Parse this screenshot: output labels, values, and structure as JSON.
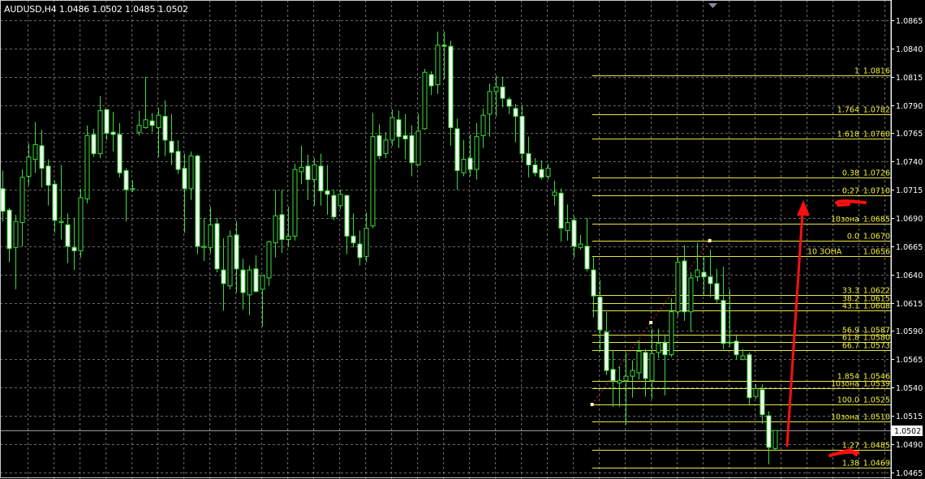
{
  "header": {
    "symbol_title": "AUDUSD,H4 1.0486 1.0502 1.0485 1.0502"
  },
  "colors": {
    "background": "#000000",
    "candle_outline": "#3cdc3c",
    "bear_fill": "#f4fff4",
    "bull_fill": "#000000",
    "grid": "#8a8a8a",
    "fib_line": "#e6e64a",
    "fib_text": "#f2f23a",
    "trendline": "#d03030",
    "annotation": "#ff1010",
    "current_price_line": "#9a9a9a"
  },
  "chart_data": {
    "type": "candlestick",
    "symbol": "AUDUSD",
    "timeframe": "H4",
    "ylim": [
      1.0459,
      1.0883
    ],
    "grid": true,
    "y_ticks": [
      "1.0865",
      "1.0840",
      "1.0815",
      "1.0790",
      "1.0765",
      "1.0740",
      "1.0715",
      "1.0690",
      "1.0665",
      "1.0640",
      "1.0615",
      "1.0590",
      "1.0565",
      "1.0540",
      "1.0515",
      "1.0490",
      "1.0465"
    ],
    "ohlc_fields": [
      "open",
      "high",
      "low",
      "close"
    ],
    "candles": [
      [
        1.0716,
        1.0732,
        1.0687,
        1.0696
      ],
      [
        1.0697,
        1.0699,
        1.0651,
        1.0663
      ],
      [
        1.0664,
        1.0693,
        1.0627,
        1.0687
      ],
      [
        1.0686,
        1.0733,
        1.0665,
        1.0726
      ],
      [
        1.0727,
        1.0756,
        1.0719,
        1.0744
      ],
      [
        1.0742,
        1.0775,
        1.073,
        1.0755
      ],
      [
        1.0754,
        1.0768,
        1.0717,
        1.0734
      ],
      [
        1.0736,
        1.0742,
        1.0701,
        1.0719
      ],
      [
        1.072,
        1.0723,
        1.0677,
        1.0688
      ],
      [
        1.0686,
        1.0737,
        1.0671,
        1.0687
      ],
      [
        1.0684,
        1.0694,
        1.065,
        1.0665
      ],
      [
        1.0664,
        1.069,
        1.0644,
        1.0661
      ],
      [
        1.0661,
        1.0716,
        1.0655,
        1.0708
      ],
      [
        1.0707,
        1.0772,
        1.0703,
        1.0763
      ],
      [
        1.0764,
        1.0769,
        1.0744,
        1.0747
      ],
      [
        1.0747,
        1.0798,
        1.0743,
        1.0785
      ],
      [
        1.0786,
        1.0786,
        1.0759,
        1.0765
      ],
      [
        1.0766,
        1.0784,
        1.0749,
        1.0764
      ],
      [
        1.0764,
        1.0774,
        1.0726,
        1.073
      ],
      [
        1.0732,
        1.0734,
        1.0687,
        1.0715
      ],
      [
        1.0715,
        1.0723,
        1.0713,
        1.0716
      ],
      [
        1.0766,
        1.0785,
        1.0763,
        1.0772
      ],
      [
        1.077,
        1.0815,
        1.0769,
        1.0777
      ],
      [
        1.0776,
        1.0783,
        1.0766,
        1.0772
      ],
      [
        1.077,
        1.0787,
        1.0744,
        1.0781
      ],
      [
        1.078,
        1.0794,
        1.0745,
        1.0759
      ],
      [
        1.0758,
        1.0782,
        1.0737,
        1.0748
      ],
      [
        1.0749,
        1.0759,
        1.0729,
        1.0733
      ],
      [
        1.0734,
        1.0747,
        1.0677,
        1.0716
      ],
      [
        1.0716,
        1.0749,
        1.0706,
        1.0745
      ],
      [
        1.0745,
        1.0746,
        1.0658,
        1.0665
      ],
      [
        1.0664,
        1.069,
        1.0652,
        1.0665
      ],
      [
        1.0664,
        1.07,
        1.0659,
        1.0684
      ],
      [
        1.0685,
        1.069,
        1.0642,
        1.0645
      ],
      [
        1.0644,
        1.0672,
        1.0608,
        1.0632
      ],
      [
        1.063,
        1.0679,
        1.0627,
        1.0674
      ],
      [
        1.0675,
        1.0687,
        1.0624,
        1.0645
      ],
      [
        1.0644,
        1.0654,
        1.0609,
        1.0624
      ],
      [
        1.0622,
        1.0648,
        1.0604,
        1.0644
      ],
      [
        1.0645,
        1.0657,
        1.0624,
        1.0625
      ],
      [
        1.0627,
        1.0639,
        1.0594,
        1.0639
      ],
      [
        1.0637,
        1.067,
        1.063,
        1.0669
      ],
      [
        1.0668,
        1.0715,
        1.0655,
        1.0692
      ],
      [
        1.0693,
        1.0715,
        1.0659,
        1.0671
      ],
      [
        1.0671,
        1.07,
        1.0665,
        1.0674
      ],
      [
        1.0674,
        1.0738,
        1.067,
        1.0733
      ],
      [
        1.0731,
        1.0754,
        1.072,
        1.0735
      ],
      [
        1.0736,
        1.0746,
        1.0706,
        1.0724
      ],
      [
        1.0724,
        1.0743,
        1.0701,
        1.0737
      ],
      [
        1.0736,
        1.0747,
        1.0701,
        1.0714
      ],
      [
        1.0714,
        1.0737,
        1.0693,
        1.0711
      ],
      [
        1.071,
        1.0715,
        1.0688,
        1.0691
      ],
      [
        1.0701,
        1.0715,
        1.0698,
        1.0711
      ],
      [
        1.071,
        1.071,
        1.0658,
        1.0674
      ],
      [
        1.0674,
        1.0694,
        1.0664,
        1.0668
      ],
      [
        1.0667,
        1.0679,
        1.0648,
        1.0655
      ],
      [
        1.0656,
        1.0695,
        1.0651,
        1.0681
      ],
      [
        1.0683,
        1.0783,
        1.0681,
        1.0762
      ],
      [
        1.0763,
        1.0773,
        1.0742,
        1.0745
      ],
      [
        1.0747,
        1.0766,
        1.0743,
        1.0759
      ],
      [
        1.0759,
        1.0786,
        1.0754,
        1.0779
      ],
      [
        1.0777,
        1.0785,
        1.0752,
        1.0762
      ],
      [
        1.0763,
        1.0782,
        1.0742,
        1.076
      ],
      [
        1.0763,
        1.0772,
        1.0727,
        1.0739
      ],
      [
        1.0737,
        1.0782,
        1.0737,
        1.0767
      ],
      [
        1.0769,
        1.0822,
        1.0768,
        1.0819
      ],
      [
        1.0817,
        1.082,
        1.0799,
        1.0807
      ],
      [
        1.0808,
        1.0855,
        1.08,
        1.0843
      ],
      [
        1.0843,
        1.0855,
        1.0813,
        1.0842
      ],
      [
        1.0842,
        1.0847,
        1.0754,
        1.077
      ],
      [
        1.0769,
        1.0778,
        1.0715,
        1.0732
      ],
      [
        1.073,
        1.0759,
        1.0727,
        1.0742
      ],
      [
        1.0743,
        1.0764,
        1.0727,
        1.0733
      ],
      [
        1.0733,
        1.0774,
        1.0724,
        1.0762
      ],
      [
        1.0763,
        1.0787,
        1.0752,
        1.0781
      ],
      [
        1.0782,
        1.0809,
        1.0762,
        1.0802
      ],
      [
        1.0802,
        1.0816,
        1.078,
        1.0806
      ],
      [
        1.0806,
        1.0815,
        1.0788,
        1.0796
      ],
      [
        1.0795,
        1.0797,
        1.0782,
        1.0789
      ],
      [
        1.0787,
        1.0791,
        1.0757,
        1.078
      ],
      [
        1.078,
        1.079,
        1.074,
        1.0747
      ],
      [
        1.0747,
        1.0762,
        1.0726,
        1.0737
      ],
      [
        1.0737,
        1.0743,
        1.0727,
        1.073
      ],
      [
        1.0733,
        1.0741,
        1.0724,
        1.0726
      ],
      [
        1.0727,
        1.0738,
        1.0724,
        1.0734
      ],
      [
        1.071,
        1.0723,
        1.0701,
        1.0713
      ],
      [
        1.0712,
        1.0716,
        1.0669,
        1.0681
      ],
      [
        1.0679,
        1.0702,
        1.067,
        1.0686
      ],
      [
        1.0688,
        1.0692,
        1.0655,
        1.0665
      ],
      [
        1.0664,
        1.0675,
        1.0662,
        1.0667
      ],
      [
        1.0665,
        1.069,
        1.0643,
        1.0645
      ],
      [
        1.0644,
        1.0656,
        1.0602,
        1.0621
      ],
      [
        1.062,
        1.0635,
        1.0572,
        1.0591
      ],
      [
        1.0589,
        1.0607,
        1.0551,
        1.0555
      ],
      [
        1.0556,
        1.0573,
        1.0523,
        1.0546
      ],
      [
        1.0544,
        1.0559,
        1.0523,
        1.0546
      ],
      [
        1.0546,
        1.0571,
        1.0507,
        1.055
      ],
      [
        1.055,
        1.0564,
        1.0531,
        1.0555
      ],
      [
        1.0553,
        1.0582,
        1.0547,
        1.0572
      ],
      [
        1.0571,
        1.0574,
        1.0532,
        1.0548
      ],
      [
        1.0546,
        1.0592,
        1.053,
        1.057
      ],
      [
        1.0571,
        1.0592,
        1.0566,
        1.0579
      ],
      [
        1.058,
        1.0587,
        1.0533,
        1.0569
      ],
      [
        1.0569,
        1.0619,
        1.0567,
        1.0607
      ],
      [
        1.0607,
        1.0656,
        1.0603,
        1.0651
      ],
      [
        1.0652,
        1.0666,
        1.0599,
        1.0607
      ],
      [
        1.0607,
        1.0642,
        1.0589,
        1.0637
      ],
      [
        1.0638,
        1.0668,
        1.0634,
        1.0644
      ],
      [
        1.0642,
        1.0656,
        1.0622,
        1.0638
      ],
      [
        1.0638,
        1.0662,
        1.062,
        1.0632
      ],
      [
        1.0632,
        1.0645,
        1.0615,
        1.0618
      ],
      [
        1.0617,
        1.0647,
        1.0574,
        1.0579
      ],
      [
        1.058,
        1.0627,
        1.0576,
        1.058
      ],
      [
        1.0581,
        1.0586,
        1.0565,
        1.0569
      ],
      [
        1.0565,
        1.0574,
        1.0564,
        1.0568
      ],
      [
        1.0569,
        1.0571,
        1.0525,
        1.0531
      ],
      [
        1.0532,
        1.0543,
        1.053,
        1.0539
      ],
      [
        1.0538,
        1.0543,
        1.0508,
        1.0516
      ],
      [
        1.0515,
        1.0519,
        1.0472,
        1.0487
      ],
      [
        1.0486,
        1.0502,
        1.0485,
        1.0502
      ]
    ],
    "current_price": "1.0502",
    "fib_levels": [
      {
        "level": "1",
        "price": "1.0816"
      },
      {
        "level": "1.764",
        "price": "1.0782"
      },
      {
        "level": "1.618",
        "price": "1.0760"
      },
      {
        "level": "0.38",
        "price": "1.0726"
      },
      {
        "level": "0,27",
        "price": "1.0710"
      },
      {
        "level": "10зона",
        "price": "1.0685"
      },
      {
        "level": "0.0",
        "price": "1.0670"
      },
      {
        "level": "10  ЗОНА",
        "price": "1.0656",
        "align": "left"
      },
      {
        "level": "33.3",
        "price": "1.0622"
      },
      {
        "level": "38.2",
        "price": "1.0615"
      },
      {
        "level": "43.1",
        "price": "1.0608"
      },
      {
        "level": "56.9",
        "price": "1.0587"
      },
      {
        "level": "61.8",
        "price": "1.0580"
      },
      {
        "level": "66.7",
        "price": "1.0573"
      },
      {
        "level": "1.854",
        "price": "1.0546"
      },
      {
        "level": "10зона",
        "price": "1.0539"
      },
      {
        "level": "100.0",
        "price": "1.0525"
      },
      {
        "level": "10зона",
        "price": "1.0510"
      },
      {
        "level": "1.27",
        "price": "1.0485"
      },
      {
        "level": "1,38",
        "price": "1.0469"
      }
    ],
    "fib_start_candle": 91,
    "trendline": {
      "from": {
        "candle": 91,
        "price": 1.0525
      },
      "to": {
        "candle": 109,
        "price": 1.067
      }
    }
  }
}
